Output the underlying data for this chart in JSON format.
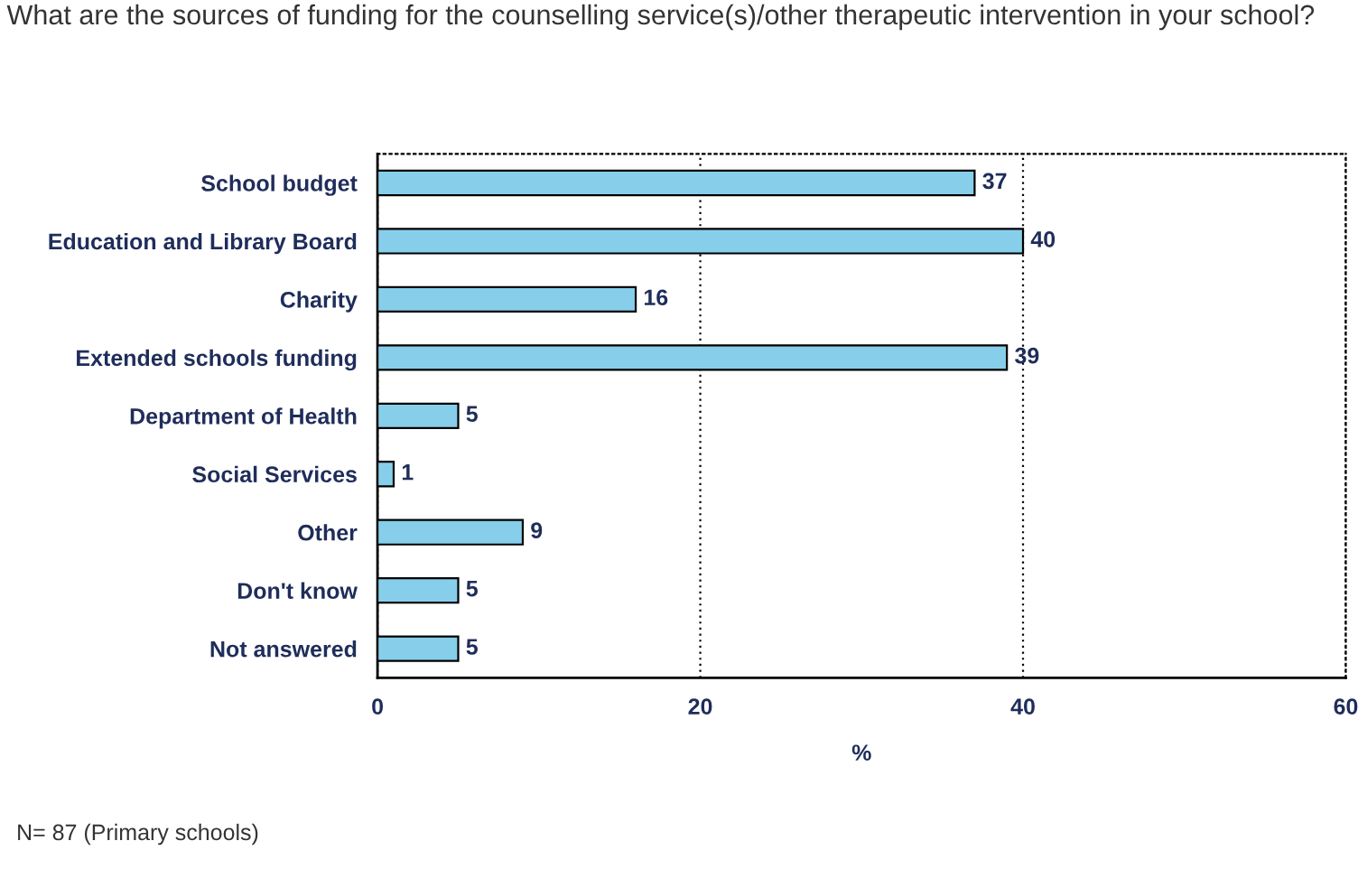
{
  "chart_data": {
    "type": "bar",
    "orientation": "horizontal",
    "title": "What are the sources of funding for the counselling service(s)/other therapeutic intervention in your school?",
    "categories": [
      "School budget",
      "Education and Library Board",
      "Charity",
      "Extended schools funding",
      "Department of Health",
      "Social Services",
      "Other",
      "Don't know",
      "Not answered"
    ],
    "values": [
      37,
      40,
      16,
      39,
      5,
      1,
      9,
      5,
      5
    ],
    "color": "#87ceeb",
    "xlim": [
      0,
      60
    ],
    "xticks": [
      0,
      20,
      40,
      60
    ],
    "xlabel": "%",
    "grid": "x",
    "data_labels": true,
    "annotations": [
      "N= 87 (Primary schools)"
    ]
  }
}
